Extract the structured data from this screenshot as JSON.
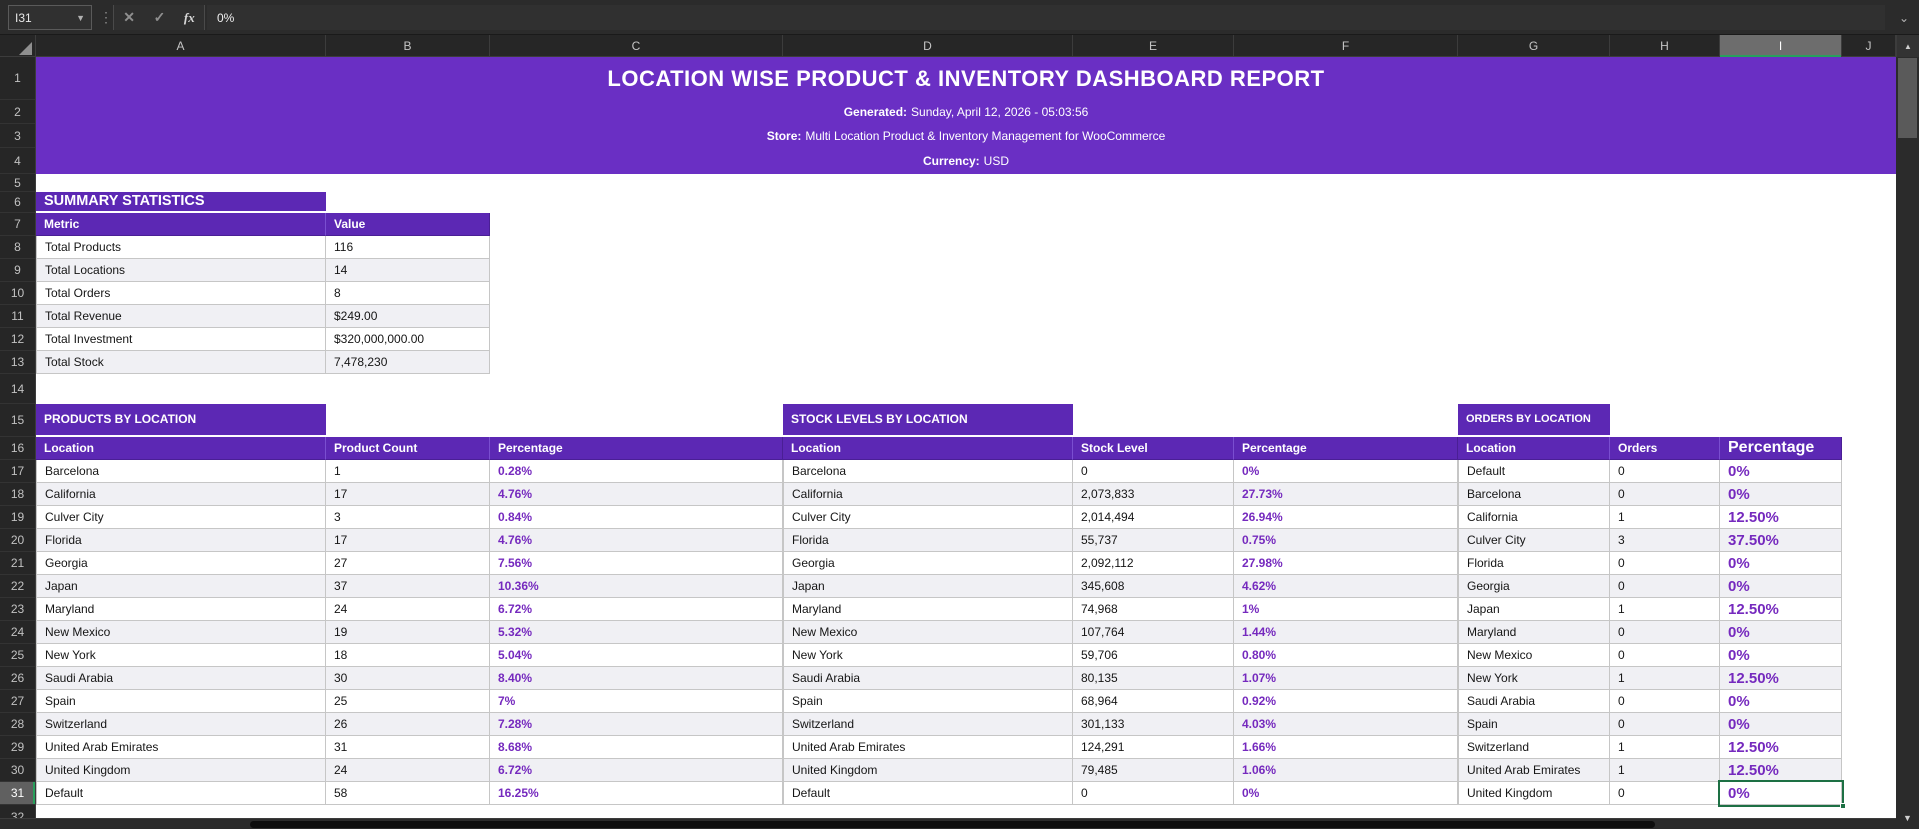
{
  "app": {
    "name_box": "I31",
    "formula": "0%"
  },
  "icons": {
    "dropdown": "▼",
    "menu_dots": "⋮",
    "cancel": "✕",
    "accept": "✓",
    "function": "fx",
    "expand": "⌄",
    "scroll_up": "▲",
    "scroll_down": "▼"
  },
  "sheet": {
    "columns": [
      "A",
      "B",
      "C",
      "D",
      "E",
      "F",
      "G",
      "H",
      "I",
      "J"
    ],
    "selected_column": "I",
    "first_row": 1,
    "last_row": 32,
    "selected_row": 31,
    "selected_cell": "I31"
  },
  "banner": {
    "title": "LOCATION WISE PRODUCT & INVENTORY DASHBOARD REPORT",
    "generated_label": "Generated:",
    "generated_value": "Sunday, April 12, 2026 - 05:03:56",
    "store_label": "Store:",
    "store_value": "Multi Location Product & Inventory Management for WooCommerce",
    "currency_label": "Currency:",
    "currency_value": "USD"
  },
  "summary": {
    "title": "SUMMARY STATISTICS",
    "headers": [
      "Metric",
      "Value"
    ],
    "rows": [
      [
        "Total Products",
        "116"
      ],
      [
        "Total Locations",
        "14"
      ],
      [
        "Total Orders",
        "8"
      ],
      [
        "Total Revenue",
        "$249.00"
      ],
      [
        "Total Investment",
        "$320,000,000.00"
      ],
      [
        "Total Stock",
        "7,478,230"
      ]
    ]
  },
  "products_table": {
    "title": "PRODUCTS BY LOCATION",
    "headers": [
      "Location",
      "Product Count",
      "Percentage"
    ],
    "rows": [
      [
        "Barcelona",
        "1",
        "0.28%"
      ],
      [
        "California",
        "17",
        "4.76%"
      ],
      [
        "Culver City",
        "3",
        "0.84%"
      ],
      [
        "Florida",
        "17",
        "4.76%"
      ],
      [
        "Georgia",
        "27",
        "7.56%"
      ],
      [
        "Japan",
        "37",
        "10.36%"
      ],
      [
        "Maryland",
        "24",
        "6.72%"
      ],
      [
        "New Mexico",
        "19",
        "5.32%"
      ],
      [
        "New York",
        "18",
        "5.04%"
      ],
      [
        "Saudi Arabia",
        "30",
        "8.40%"
      ],
      [
        "Spain",
        "25",
        "7%"
      ],
      [
        "Switzerland",
        "26",
        "7.28%"
      ],
      [
        "United Arab Emirates",
        "31",
        "8.68%"
      ],
      [
        "United Kingdom",
        "24",
        "6.72%"
      ],
      [
        "Default",
        "58",
        "16.25%"
      ]
    ]
  },
  "stock_table": {
    "title": "STOCK LEVELS BY LOCATION",
    "headers": [
      "Location",
      "Stock Level",
      "Percentage"
    ],
    "rows": [
      [
        "Barcelona",
        "0",
        "0%"
      ],
      [
        "California",
        "2,073,833",
        "27.73%"
      ],
      [
        "Culver City",
        "2,014,494",
        "26.94%"
      ],
      [
        "Florida",
        "55,737",
        "0.75%"
      ],
      [
        "Georgia",
        "2,092,112",
        "27.98%"
      ],
      [
        "Japan",
        "345,608",
        "4.62%"
      ],
      [
        "Maryland",
        "74,968",
        "1%"
      ],
      [
        "New Mexico",
        "107,764",
        "1.44%"
      ],
      [
        "New York",
        "59,706",
        "0.80%"
      ],
      [
        "Saudi Arabia",
        "80,135",
        "1.07%"
      ],
      [
        "Spain",
        "68,964",
        "0.92%"
      ],
      [
        "Switzerland",
        "301,133",
        "4.03%"
      ],
      [
        "United Arab Emirates",
        "124,291",
        "1.66%"
      ],
      [
        "United Kingdom",
        "79,485",
        "1.06%"
      ],
      [
        "Default",
        "0",
        "0%"
      ]
    ]
  },
  "orders_table": {
    "title": "ORDERS BY LOCATION",
    "headers": [
      "Location",
      "Orders",
      "Percentage"
    ],
    "rows": [
      [
        "Default",
        "0",
        "0%"
      ],
      [
        "Barcelona",
        "0",
        "0%"
      ],
      [
        "California",
        "1",
        "12.50%"
      ],
      [
        "Culver City",
        "3",
        "37.50%"
      ],
      [
        "Florida",
        "0",
        "0%"
      ],
      [
        "Georgia",
        "0",
        "0%"
      ],
      [
        "Japan",
        "1",
        "12.50%"
      ],
      [
        "Maryland",
        "0",
        "0%"
      ],
      [
        "New Mexico",
        "0",
        "0%"
      ],
      [
        "New York",
        "1",
        "12.50%"
      ],
      [
        "Saudi Arabia",
        "0",
        "0%"
      ],
      [
        "Spain",
        "0",
        "0%"
      ],
      [
        "Switzerland",
        "1",
        "12.50%"
      ],
      [
        "United Arab Emirates",
        "1",
        "12.50%"
      ],
      [
        "United Kingdom",
        "0",
        "0%"
      ]
    ]
  },
  "colors": {
    "banner_purple": "#6A2FC4",
    "header_purple": "#5C28B4",
    "percent_purple": "#7529BE",
    "selection_green": "#1D7044",
    "alt_row": "#F0F0F4",
    "chrome_dark": "#2B2B2B"
  }
}
